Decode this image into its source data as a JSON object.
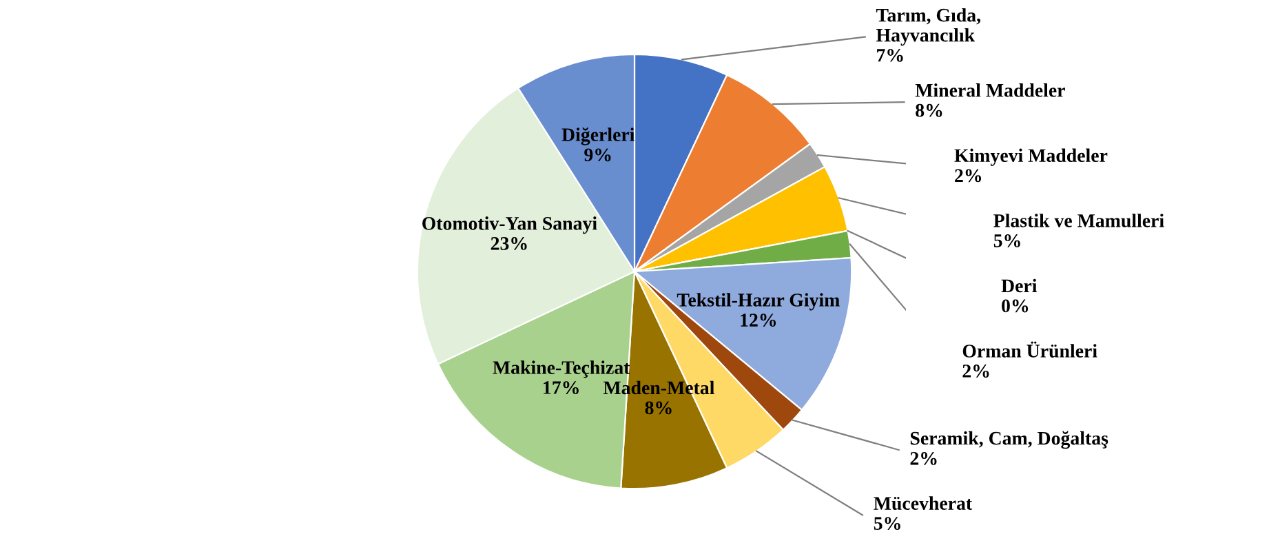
{
  "chart_data": {
    "type": "pie",
    "categories": [
      "Tarım, Gıda,\nHayvancılık",
      "Mineral Maddeler",
      "Kimyevi Maddeler",
      "Plastik ve Mamulleri",
      "Deri",
      "Orman Ürünleri",
      "Tekstil-Hazır Giyim",
      "Seramik, Cam, Doğaltaş",
      "Mücevherat",
      "Maden-Metal",
      "Makine-Teçhizat",
      "Otomotiv-Yan Sanayi",
      "Diğerleri"
    ],
    "values": [
      7,
      8,
      2,
      5,
      0,
      2,
      12,
      2,
      5,
      8,
      17,
      23,
      9
    ],
    "colors": [
      "#4472c4",
      "#ed7d31",
      "#a5a5a5",
      "#ffc000",
      "#5b9bd5",
      "#70ad47",
      "#8faadc",
      "#9e480e",
      "#ffd966",
      "#997300",
      "#a9d18e",
      "#e2efda",
      "#698ed0"
    ],
    "value_labels": [
      "7%",
      "8%",
      "2%",
      "5%",
      "0%",
      "2%",
      "12%",
      "2%",
      "5%",
      "8%",
      "17%",
      "23%",
      "9%"
    ],
    "legend": false
  }
}
